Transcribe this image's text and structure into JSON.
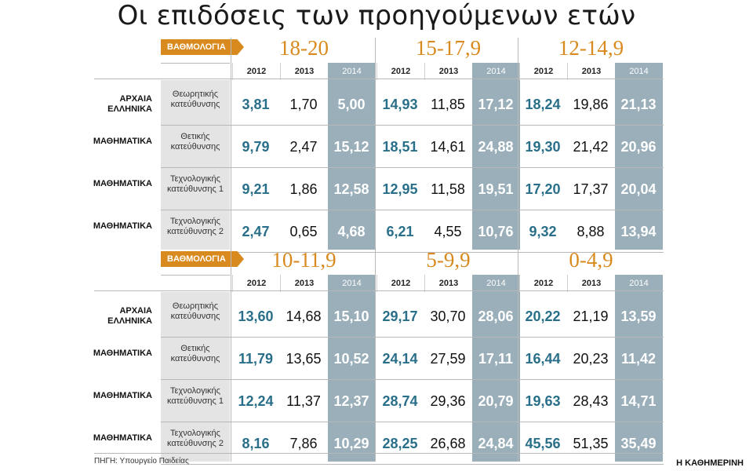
{
  "title": "Οι επιδόσεις των προηγούμενων ετών",
  "source": "ΠΗΓΗ: Υπουργείο Παιδείας",
  "credit": "Η ΚΑΘΗΜΕΡΙΝΗ",
  "colors": {
    "accent": "#d98a1f",
    "shade": "#9aafba",
    "value_blue": "#2a6f89"
  },
  "chart_data": {
    "type": "table",
    "title": "Οι επιδόσεις των προηγούμενων ετών",
    "row_label_header": "ΒΑΘΜΟΛΟΓΙΑ",
    "years": [
      "2012",
      "2013",
      "2014"
    ],
    "rows": [
      {
        "subject": "ΑΡΧΑΙΑ ΕΛΛΗΝΙΚΑ",
        "track": "Θεωρητικής κατεύθυνσης"
      },
      {
        "subject": "ΜΑΘΗΜΑΤΙΚΑ",
        "track": "Θετικής κατεύθυνσης"
      },
      {
        "subject": "ΜΑΘΗΜΑΤΙΚΑ",
        "track": "Τεχνολογικής κατεύθυνσης 1"
      },
      {
        "subject": "ΜΑΘΗΜΑΤΙΚΑ",
        "track": "Τεχνολογικής κατεύθυνσης 2"
      }
    ],
    "blocks": [
      {
        "badge": "ΒΑΘΜΟΛΟΓΙΑ",
        "ranges": [
          {
            "label": "18-20",
            "values": [
              [
                "3,81",
                "1,70",
                "5,00"
              ],
              [
                "9,79",
                "2,47",
                "15,12"
              ],
              [
                "9,21",
                "1,86",
                "12,58"
              ],
              [
                "2,47",
                "0,65",
                "4,68"
              ]
            ]
          },
          {
            "label": "15-17,9",
            "values": [
              [
                "14,93",
                "11,85",
                "17,12"
              ],
              [
                "18,51",
                "14,61",
                "24,88"
              ],
              [
                "12,95",
                "11,58",
                "19,51"
              ],
              [
                "6,21",
                "4,55",
                "10,76"
              ]
            ]
          },
          {
            "label": "12-14,9",
            "values": [
              [
                "18,24",
                "19,86",
                "21,13"
              ],
              [
                "19,30",
                "21,42",
                "20,96"
              ],
              [
                "17,20",
                "17,37",
                "20,04"
              ],
              [
                "9,32",
                "8,88",
                "13,94"
              ]
            ]
          }
        ]
      },
      {
        "badge": "ΒΑΘΜΟΛΟΓΙΑ",
        "ranges": [
          {
            "label": "10-11,9",
            "values": [
              [
                "13,60",
                "14,68",
                "15,10"
              ],
              [
                "11,79",
                "13,65",
                "10,52"
              ],
              [
                "12,24",
                "11,37",
                "12,37"
              ],
              [
                "8,16",
                "7,86",
                "10,29"
              ]
            ]
          },
          {
            "label": "5-9,9",
            "values": [
              [
                "29,17",
                "30,70",
                "28,06"
              ],
              [
                "24,14",
                "27,59",
                "17,11"
              ],
              [
                "28,74",
                "29,36",
                "20,79"
              ],
              [
                "28,25",
                "26,68",
                "24,84"
              ]
            ]
          },
          {
            "label": "0-4,9",
            "values": [
              [
                "20,22",
                "21,19",
                "13,59"
              ],
              [
                "16,44",
                "20,23",
                "11,42"
              ],
              [
                "19,63",
                "28,43",
                "14,71"
              ],
              [
                "45,56",
                "51,35",
                "35,49"
              ]
            ]
          }
        ]
      }
    ]
  }
}
